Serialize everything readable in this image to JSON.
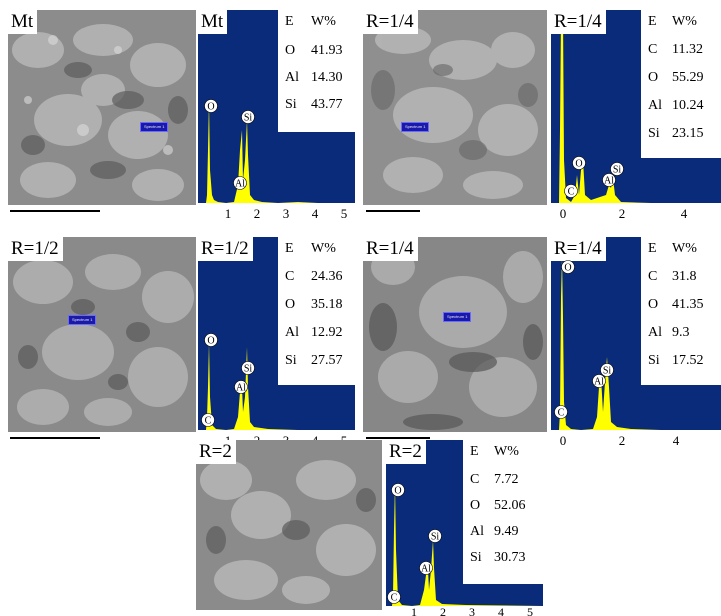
{
  "figure": {
    "panels": [
      {
        "sem_label": "Mt",
        "eds_label": "Mt",
        "spectrum_tag": "Spectrum 1",
        "table_header": [
          "E",
          "W%"
        ],
        "composition": [
          {
            "element": "O",
            "wt": "41.93"
          },
          {
            "element": "Al",
            "wt": "14.30"
          },
          {
            "element": "Si",
            "wt": "43.77"
          }
        ],
        "peak_labels": [
          "O",
          "Al",
          "Si"
        ],
        "axis_ticks": [
          "1",
          "2",
          "3",
          "4",
          "5"
        ]
      },
      {
        "sem_label": "R=1/4",
        "eds_label": "R=1/4",
        "spectrum_tag": "Spectrum 1",
        "table_header": [
          "E",
          "W%"
        ],
        "composition": [
          {
            "element": "C",
            "wt": "11.32"
          },
          {
            "element": "O",
            "wt": "55.29"
          },
          {
            "element": "Al",
            "wt": "10.24"
          },
          {
            "element": "Si",
            "wt": "23.15"
          }
        ],
        "peak_labels": [
          "C",
          "O",
          "Al",
          "Si"
        ],
        "axis_ticks": [
          "0",
          "2",
          "4"
        ]
      },
      {
        "sem_label": "R=1/2",
        "eds_label": "R=1/2",
        "spectrum_tag": "Spectrum 1",
        "table_header": [
          "E",
          "W%"
        ],
        "composition": [
          {
            "element": "C",
            "wt": "24.36"
          },
          {
            "element": "O",
            "wt": "35.18"
          },
          {
            "element": "Al",
            "wt": "12.92"
          },
          {
            "element": "Si",
            "wt": "27.57"
          }
        ],
        "peak_labels": [
          "C",
          "O",
          "Al",
          "Si"
        ],
        "axis_ticks": [
          "1",
          "2",
          "3",
          "4",
          "5"
        ]
      },
      {
        "sem_label": "R=1/4",
        "eds_label": "R=1/4",
        "spectrum_tag": "Spectrum 1",
        "table_header": [
          "E",
          "W%"
        ],
        "composition": [
          {
            "element": "C",
            "wt": "31.8"
          },
          {
            "element": "O",
            "wt": "41.35"
          },
          {
            "element": "Al",
            "wt": "9.3"
          },
          {
            "element": "Si",
            "wt": "17.52"
          }
        ],
        "peak_labels": [
          "C",
          "O",
          "Al",
          "Si"
        ],
        "axis_ticks": [
          "0",
          "2",
          "4"
        ]
      },
      {
        "sem_label": "R=2",
        "eds_label": "R=2",
        "spectrum_tag": "",
        "table_header": [
          "E",
          "W%"
        ],
        "composition": [
          {
            "element": "C",
            "wt": "7.72"
          },
          {
            "element": "O",
            "wt": "52.06"
          },
          {
            "element": "Al",
            "wt": "9.49"
          },
          {
            "element": "Si",
            "wt": "30.73"
          }
        ],
        "peak_labels": [
          "C",
          "O",
          "Al",
          "Si"
        ],
        "axis_ticks": [
          "1",
          "2",
          "3",
          "4",
          "5"
        ]
      }
    ]
  },
  "colors": {
    "eds_background": "#0a2a7a",
    "peak_fill": "#ffff00",
    "table_background": "#ffffff"
  }
}
